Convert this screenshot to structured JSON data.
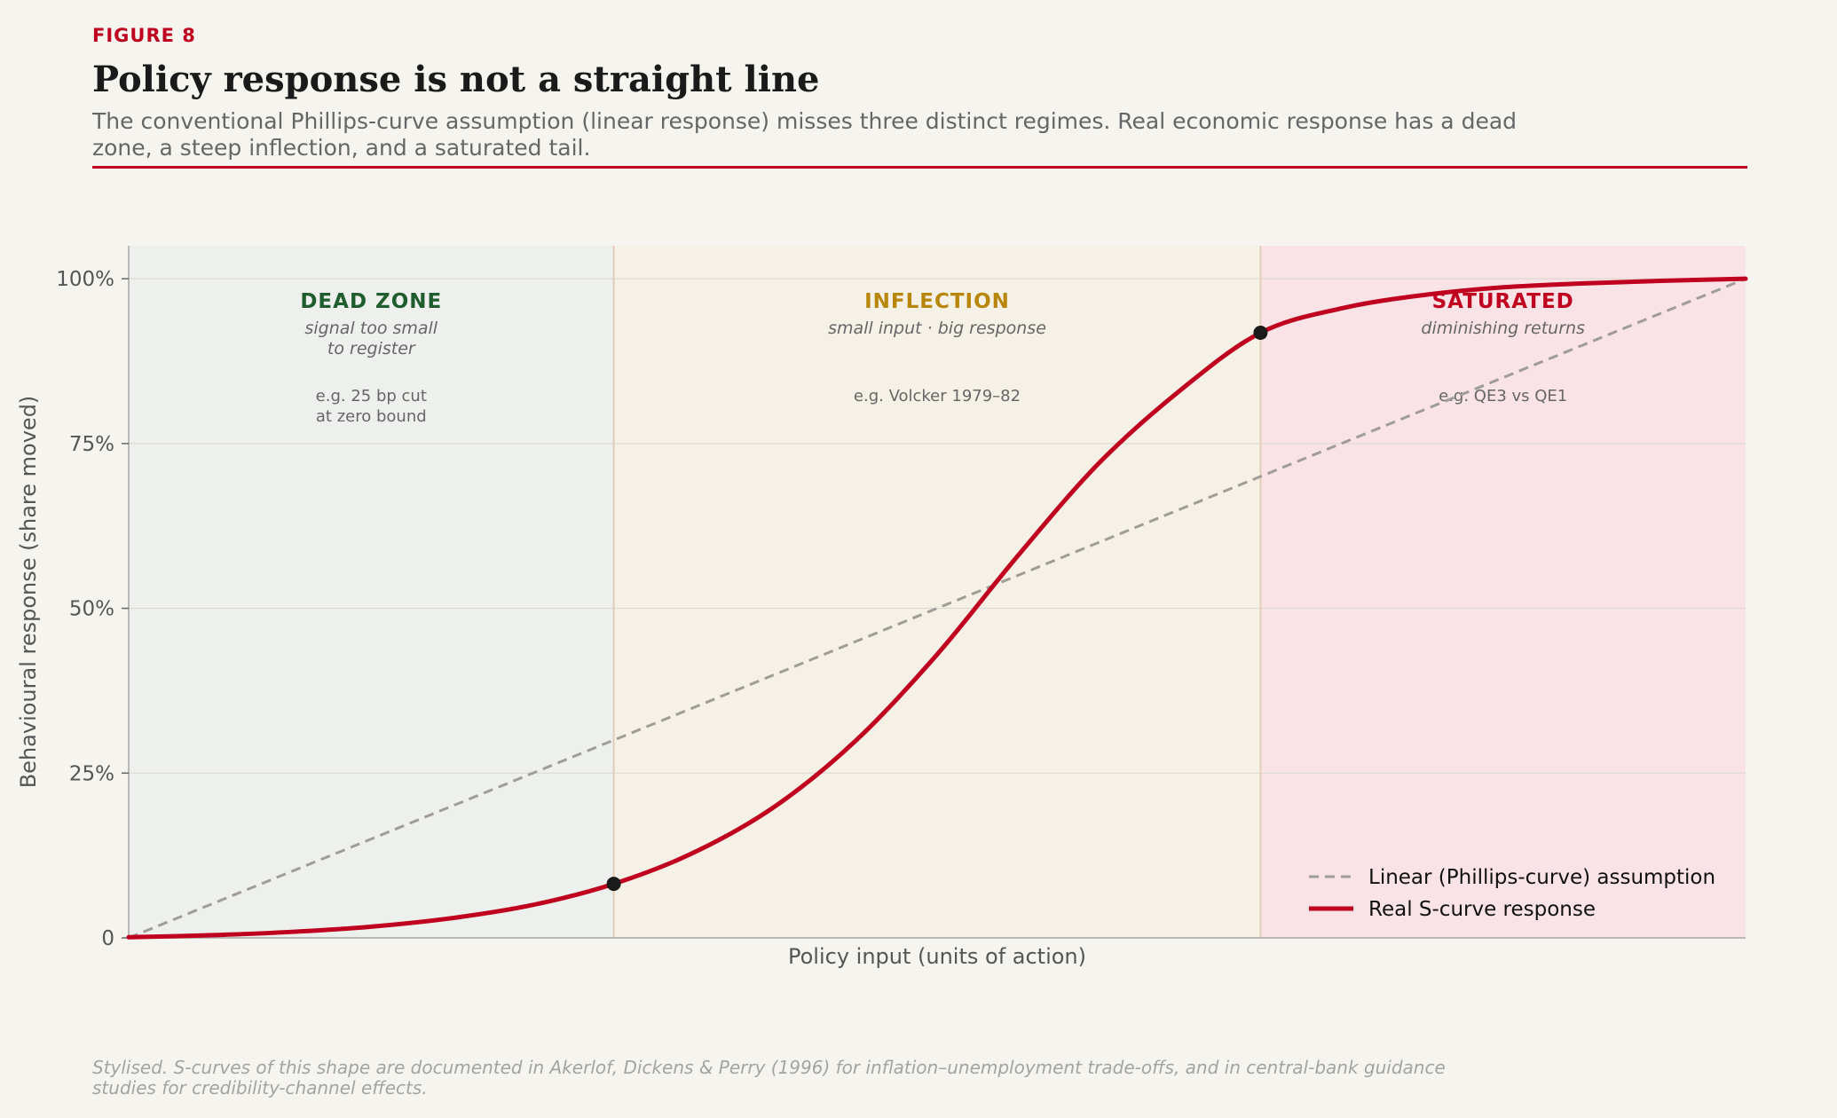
{
  "header": {
    "figure_label": "FIGURE 8",
    "title": "Policy response is not a straight line",
    "subtitle": "The conventional Phillips-curve assumption (linear response) misses three distinct regimes. Real economic response has a dead zone, a steep inflection, and a saturated tail."
  },
  "footer": {
    "source_note": "Stylised. S-curves of this shape are documented in Akerlof, Dickens & Perry (1996) for inflation–unemployment trade-offs, and in central-bank guidance studies for credibility-channel effects."
  },
  "colors": {
    "accent": "#c0001f",
    "linear": "#a09c97",
    "dead_zone_bg": "#edf0ec",
    "inflection_bg": "#f5f1e6",
    "saturated_bg": "#f9e3e6",
    "dead_zone_text": "#1f5c2e",
    "inflection_text": "#b8860b",
    "saturated_text": "#c0001f",
    "marker": "#1a1a1a"
  },
  "chart_data": {
    "type": "line",
    "xlabel": "Policy input (units of action)",
    "ylabel": "Behavioural response (share moved)",
    "xlim": [
      0,
      1
    ],
    "ylim": [
      0,
      1.05
    ],
    "yticks": [
      0,
      0.25,
      0.5,
      0.75,
      1.0
    ],
    "ytick_labels": [
      "0",
      "25%",
      "50%",
      "75%",
      "100%"
    ],
    "grid": "horizontal",
    "legend_position": "bottom-right",
    "series": [
      {
        "name": "Linear (Phillips-curve) assumption",
        "style": "dashed",
        "x": [
          0,
          1
        ],
        "y": [
          0,
          1
        ]
      },
      {
        "name": "Real S-curve response",
        "style": "solid",
        "x": [
          0.0,
          0.05,
          0.1,
          0.15,
          0.2,
          0.25,
          0.3,
          0.35,
          0.4,
          0.45,
          0.5,
          0.55,
          0.6,
          0.65,
          0.7,
          0.75,
          0.8,
          0.85,
          0.9,
          0.95,
          1.0
        ],
        "y": [
          0.001,
          0.004,
          0.009,
          0.017,
          0.03,
          0.05,
          0.082,
          0.13,
          0.2,
          0.3,
          0.43,
          0.58,
          0.72,
          0.83,
          0.918,
          0.955,
          0.975,
          0.987,
          0.993,
          0.997,
          1.0
        ]
      }
    ],
    "points": [
      {
        "x": 0.3,
        "y": 0.082
      },
      {
        "x": 0.7,
        "y": 0.918
      }
    ],
    "regions": [
      {
        "x0": 0,
        "x1": 0.3,
        "title": "DEAD ZONE",
        "lines": [
          "signal too small",
          "to register"
        ],
        "example_lines": [
          "e.g. 25 bp cut",
          "at zero bound"
        ]
      },
      {
        "x0": 0.3,
        "x1": 0.7,
        "title": "INFLECTION",
        "lines": [
          "small input · big response"
        ],
        "example_lines": [
          "e.g. Volcker 1979–82"
        ]
      },
      {
        "x0": 0.7,
        "x1": 1.0,
        "title": "SATURATED",
        "lines": [
          "diminishing returns"
        ],
        "example_lines": [
          "e.g. QE3 vs QE1"
        ]
      }
    ]
  }
}
